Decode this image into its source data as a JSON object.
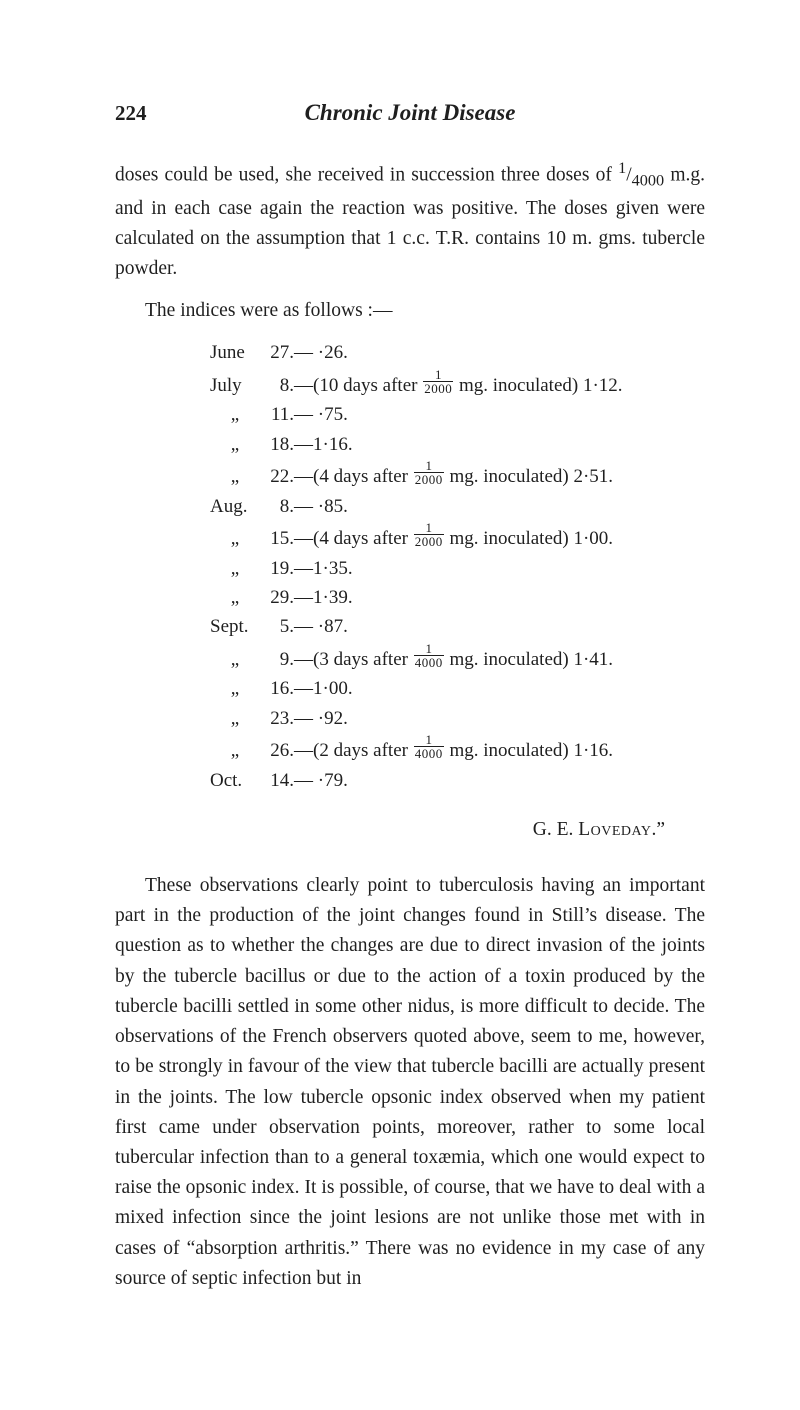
{
  "page_number": "224",
  "running_title": "Chronic Joint Disease",
  "para1_a": "doses could be used, she received in succession three doses of ",
  "para1_frac": {
    "num": "1",
    "den": "4000"
  },
  "para1_b": " m.g. and in each case again the reaction was positive. The doses given were calculated on the assumption that 1 c.c. T.R. contains 10 m. gms. tubercle powder.",
  "para2": "The indices were as follows :—",
  "indices": [
    {
      "month": "June",
      "day": "27.",
      "tail": "— ·26."
    },
    {
      "month": "July",
      "day": "8.",
      "tail_a": "—(10 days after ",
      "frac": {
        "num": "1",
        "den": "2000"
      },
      "tail_b": " mg. inoculated) 1·12."
    },
    {
      "month": "„",
      "day": "11.",
      "tail": "— ·75."
    },
    {
      "month": "„",
      "day": "18.",
      "tail": "—1·16."
    },
    {
      "month": "„",
      "day": "22.",
      "tail_a": "—(4 days after ",
      "frac": {
        "num": "1",
        "den": "2000"
      },
      "tail_b": " mg. inoculated) 2·51."
    },
    {
      "month": "Aug.",
      "day": "8.",
      "tail": "— ·85."
    },
    {
      "month": "„",
      "day": "15.",
      "tail_a": "—(4 days after ",
      "frac": {
        "num": "1",
        "den": "2000"
      },
      "tail_b": " mg. inoculated) 1·00."
    },
    {
      "month": "„",
      "day": "19.",
      "tail": "—1·35."
    },
    {
      "month": "„",
      "day": "29.",
      "tail": "—1·39."
    },
    {
      "month": "Sept.",
      "day": "5.",
      "tail": "— ·87."
    },
    {
      "month": "„",
      "day": "9.",
      "tail_a": "—(3 days after ",
      "frac": {
        "num": "1",
        "den": "4000"
      },
      "tail_b": " mg. inoculated) 1·41."
    },
    {
      "month": "„",
      "day": "16.",
      "tail": "—1·00."
    },
    {
      "month": "„",
      "day": "23.",
      "tail": "— ·92."
    },
    {
      "month": "„",
      "day": "26.",
      "tail_a": "—(2 days after ",
      "frac": {
        "num": "1",
        "den": "4000"
      },
      "tail_b": " mg. inoculated) 1·16."
    },
    {
      "month": "Oct.",
      "day": "14.",
      "tail": "— ·79."
    }
  ],
  "signature_a": "G. E. ",
  "signature_b": "Loveday",
  "signature_c": ".”",
  "para3": "These observations clearly point to tuberculosis having an important part in the production of the joint changes found in Still’s disease. The question as to whether the changes are due to direct invasion of the joints by the tubercle bacillus or due to the action of a toxin produced by the tubercle bacilli settled in some other nidus, is more difficult to decide. The observa­tions of the French observers quoted above, seem to me, how­ever, to be strongly in favour of the view that tubercle bacilli are actually present in the joints. The low tubercle opsonic index observed when my patient first came under observation points, moreover, rather to some local tubercular infection than to a general toxæmia, which one would expect to raise the opsonic index. It is possible, of course, that we have to deal with a mixed infection since the joint lesions are not unlike those met with in cases of “absorption arthritis.” There was no evidence in my case of any source of septic infection but in"
}
